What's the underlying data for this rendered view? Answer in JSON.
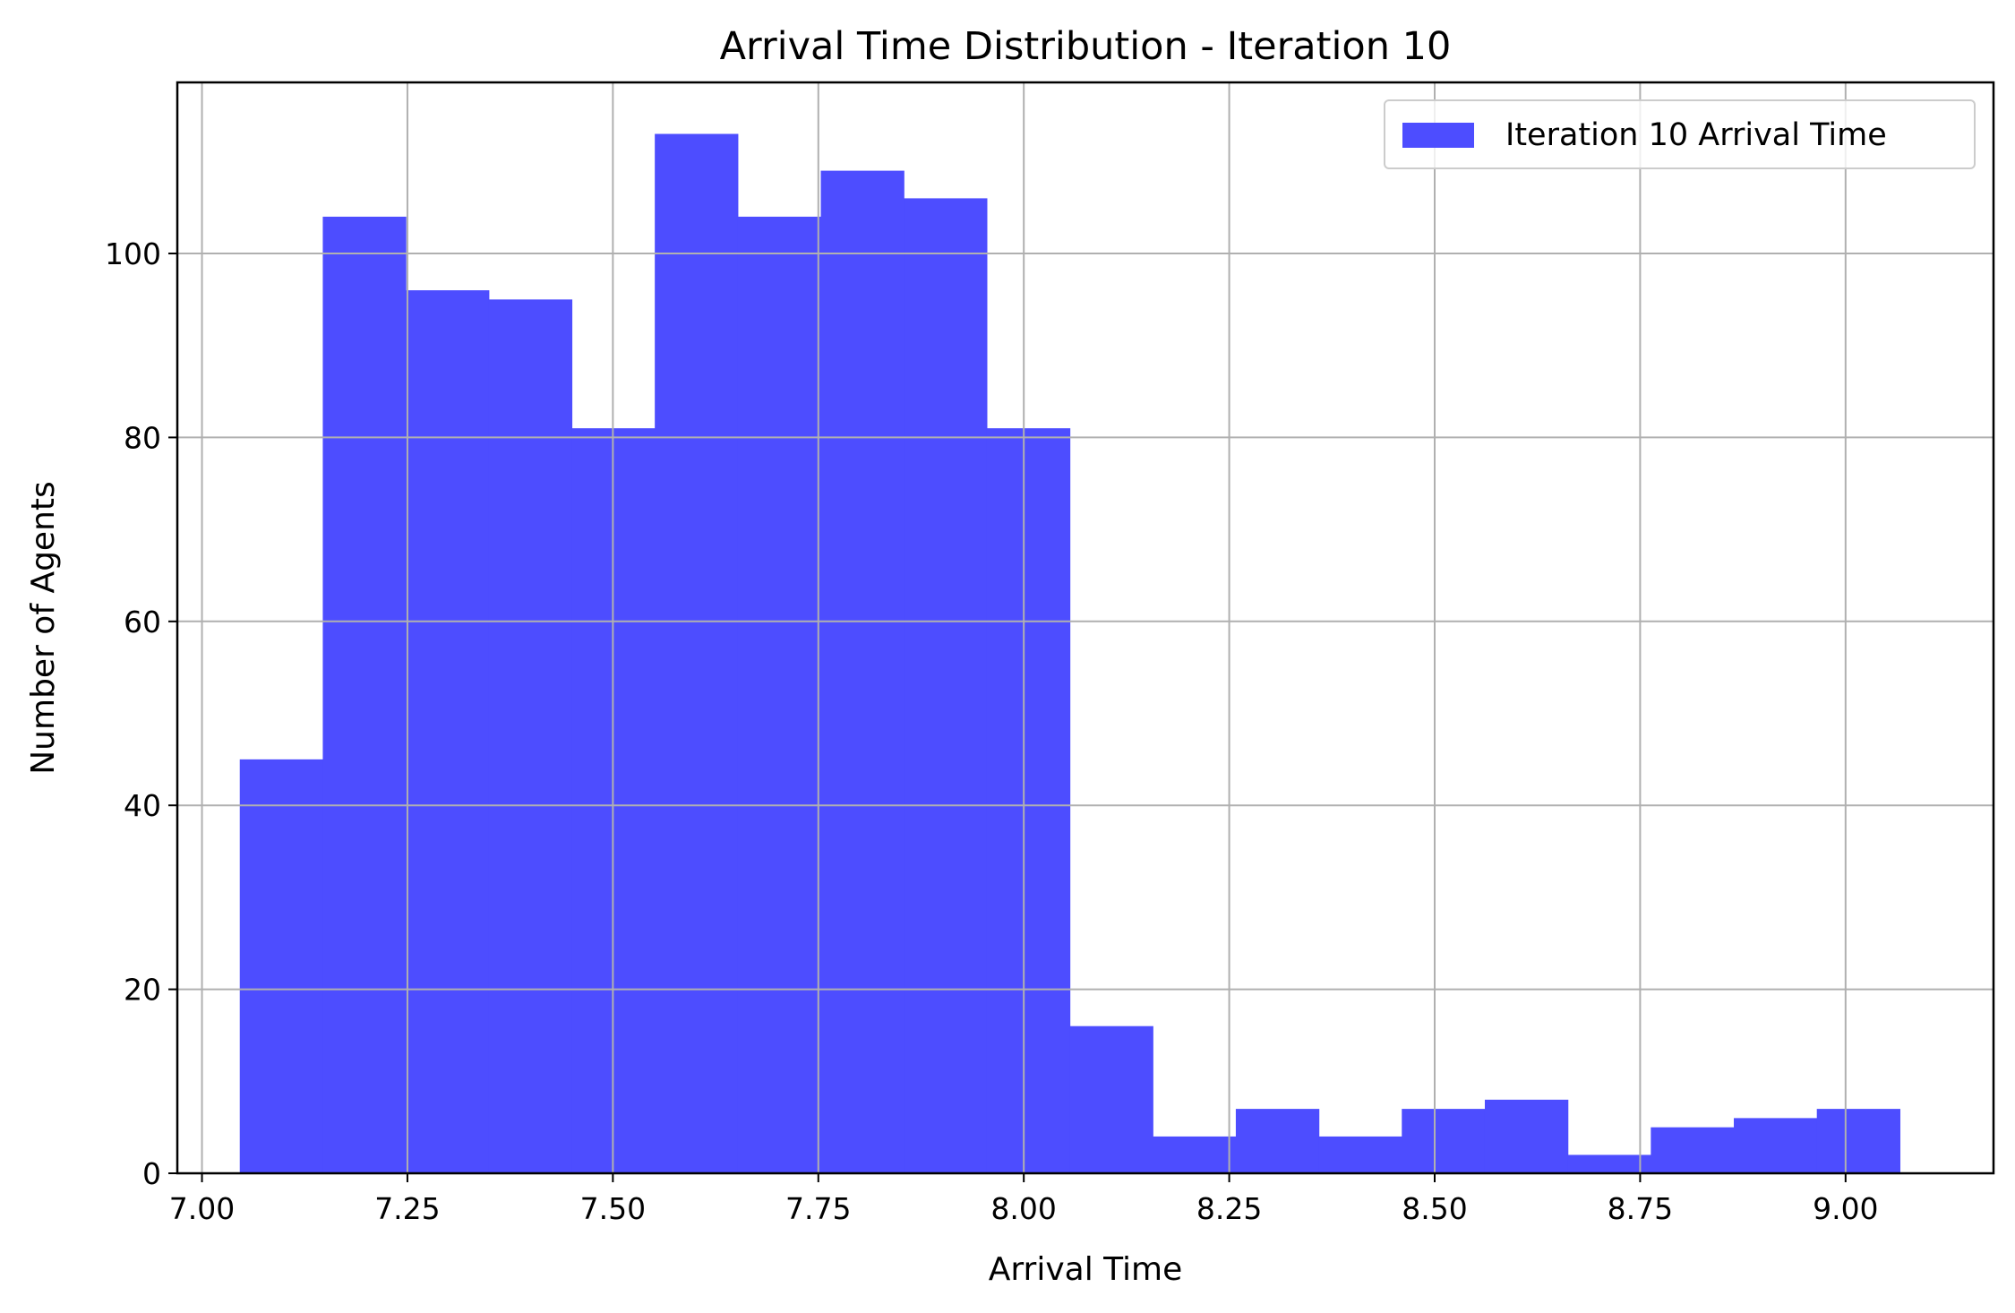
{
  "chart_data": {
    "type": "bar",
    "title": "Arrival Time Distribution - Iteration 10",
    "xlabel": "Arrival Time",
    "ylabel": "Number of Agents",
    "xlim": [
      6.97,
      9.18
    ],
    "ylim": [
      0,
      118.6
    ],
    "xticks": [
      7.0,
      7.25,
      7.5,
      7.75,
      8.0,
      8.25,
      8.5,
      8.75,
      9.0
    ],
    "xtick_labels": [
      "7.00",
      "7.25",
      "7.50",
      "7.75",
      "8.00",
      "8.25",
      "8.50",
      "8.75",
      "9.00"
    ],
    "yticks": [
      0,
      20,
      40,
      60,
      80,
      100
    ],
    "ytick_labels": [
      "0",
      "20",
      "40",
      "60",
      "80",
      "100"
    ],
    "grid": true,
    "legend_position": "top-right",
    "bar_color": "#4d4dff",
    "series": [
      {
        "name": "Iteration 10 Arrival Time",
        "bin_edges": [
          7.046,
          7.147,
          7.248,
          7.349,
          7.45,
          7.551,
          7.652,
          7.753,
          7.854,
          7.955,
          8.056,
          8.157,
          8.258,
          8.359,
          8.46,
          8.561,
          8.662,
          8.763,
          8.864,
          8.965,
          9.066
        ],
        "values": [
          45,
          104,
          96,
          95,
          81,
          113,
          104,
          109,
          106,
          81,
          16,
          4,
          7,
          4,
          7,
          8,
          2,
          5,
          6,
          7
        ]
      }
    ]
  }
}
